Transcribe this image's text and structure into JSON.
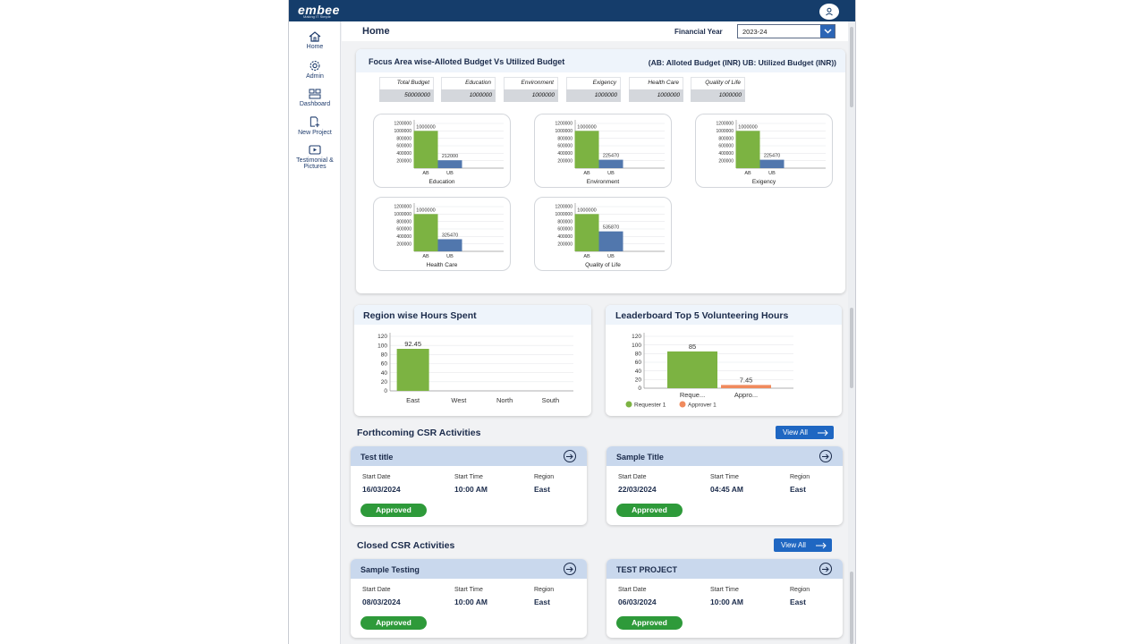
{
  "brand": {
    "logo": "embee",
    "tagline": "Making IT Simple"
  },
  "sidebar": {
    "items": [
      {
        "label": "Home",
        "icon": "home-icon"
      },
      {
        "label": "Admin",
        "icon": "gear-icon"
      },
      {
        "label": "Dashboard",
        "icon": "dashboard-icon"
      },
      {
        "label": "New Project",
        "icon": "new-file-icon"
      },
      {
        "label": "Testimonial & Pictures",
        "icon": "video-icon"
      }
    ]
  },
  "header": {
    "title": "Home",
    "fy_label": "Financial Year",
    "fy_value": "2023-24"
  },
  "budget": {
    "title": "Focus Area wise-Alloted Budget Vs Utilized Budget",
    "legend": "(AB: Alloted Budget (INR)   UB: Utilized Budget (INR))",
    "stats": [
      {
        "label": "Total Budget",
        "value": "50000000"
      },
      {
        "label": "Education",
        "value": "1000000"
      },
      {
        "label": "Environment",
        "value": "1000000"
      },
      {
        "label": "Exigency",
        "value": "1000000"
      },
      {
        "label": "Health Care",
        "value": "1000000"
      },
      {
        "label": "Quality of Life",
        "value": "1000000"
      }
    ]
  },
  "chart_data": [
    {
      "type": "bar",
      "title": "Education",
      "categories": [
        "AB",
        "UB"
      ],
      "values": [
        1000000,
        212000
      ],
      "labels": [
        "1000000",
        "212000"
      ],
      "ylim": [
        0,
        1200000
      ],
      "yticks": [
        "1200000",
        "1000000",
        "800000",
        "600000",
        "400000",
        "200000"
      ]
    },
    {
      "type": "bar",
      "title": "Environment",
      "categories": [
        "AB",
        "UB"
      ],
      "values": [
        1000000,
        225470
      ],
      "labels": [
        "1000000",
        "225470"
      ],
      "ylim": [
        0,
        1200000
      ],
      "yticks": [
        "1200000",
        "1000000",
        "800000",
        "600000",
        "400000",
        "200000"
      ]
    },
    {
      "type": "bar",
      "title": "Exigency",
      "categories": [
        "AB",
        "UB"
      ],
      "values": [
        1000000,
        225470
      ],
      "labels": [
        "1000000",
        "225470"
      ],
      "ylim": [
        0,
        1200000
      ],
      "yticks": [
        "1200000",
        "1000000",
        "800000",
        "600000",
        "400000",
        "200000"
      ]
    },
    {
      "type": "bar",
      "title": "Health Care",
      "categories": [
        "AB",
        "UB"
      ],
      "values": [
        1000000,
        325470
      ],
      "labels": [
        "1000000",
        "325470"
      ],
      "ylim": [
        0,
        1200000
      ],
      "yticks": [
        "1200000",
        "1000000",
        "800000",
        "600000",
        "400000",
        "200000"
      ]
    },
    {
      "type": "bar",
      "title": "Quality of Life",
      "categories": [
        "AB",
        "UB"
      ],
      "values": [
        1000000,
        535870
      ],
      "labels": [
        "1000000",
        "535870"
      ],
      "ylim": [
        0,
        1200000
      ],
      "yticks": [
        "1200000",
        "1000000",
        "800000",
        "600000",
        "400000",
        "200000"
      ]
    },
    {
      "type": "bar",
      "title": "Region wise Hours Spent",
      "categories": [
        "East",
        "West",
        "North",
        "South"
      ],
      "values": [
        92.45,
        0,
        0,
        0
      ],
      "labels": [
        "92.45",
        "",
        "",
        ""
      ],
      "ylim": [
        0,
        120
      ],
      "yticks": [
        "120",
        "100",
        "80",
        "60",
        "40",
        "20",
        "0"
      ]
    },
    {
      "type": "bar",
      "title": "Leaderboard Top 5 Volunteering Hours",
      "categories": [
        "Reque...",
        "Appro..."
      ],
      "values": [
        85,
        7.45
      ],
      "labels": [
        "85",
        "7.45"
      ],
      "ylim": [
        0,
        120
      ],
      "yticks": [
        "120",
        "100",
        "80",
        "60",
        "40",
        "20",
        "0"
      ],
      "legend": [
        "Requester 1",
        "Approver 1"
      ]
    }
  ],
  "colors": {
    "ab": "#7cb342",
    "ub": "#5177ad",
    "approver": "#f08a5d",
    "header": "#153d6b",
    "badge": "#2e9a3a"
  },
  "forthcoming": {
    "title": "Forthcoming CSR Activities",
    "view_all": "View All",
    "items": [
      {
        "title": "Test title",
        "start_date": "16/03/2024",
        "start_time": "10:00 AM",
        "region": "East",
        "status": "Approved"
      },
      {
        "title": "Sample Title",
        "start_date": "22/03/2024",
        "start_time": "04:45 AM",
        "region": "East",
        "status": "Approved"
      }
    ]
  },
  "closed": {
    "title": "Closed CSR Activities",
    "view_all": "View All",
    "items": [
      {
        "title": "Sample Testing",
        "start_date": "08/03/2024",
        "start_time": "10:00 AM",
        "region": "East",
        "status": "Approved"
      },
      {
        "title": "TEST PROJECT",
        "start_date": "06/03/2024",
        "start_time": "10:00 AM",
        "region": "East",
        "status": "Approved"
      }
    ]
  },
  "field_labels": {
    "start_date": "Start Date",
    "start_time": "Start Time",
    "region": "Region"
  }
}
